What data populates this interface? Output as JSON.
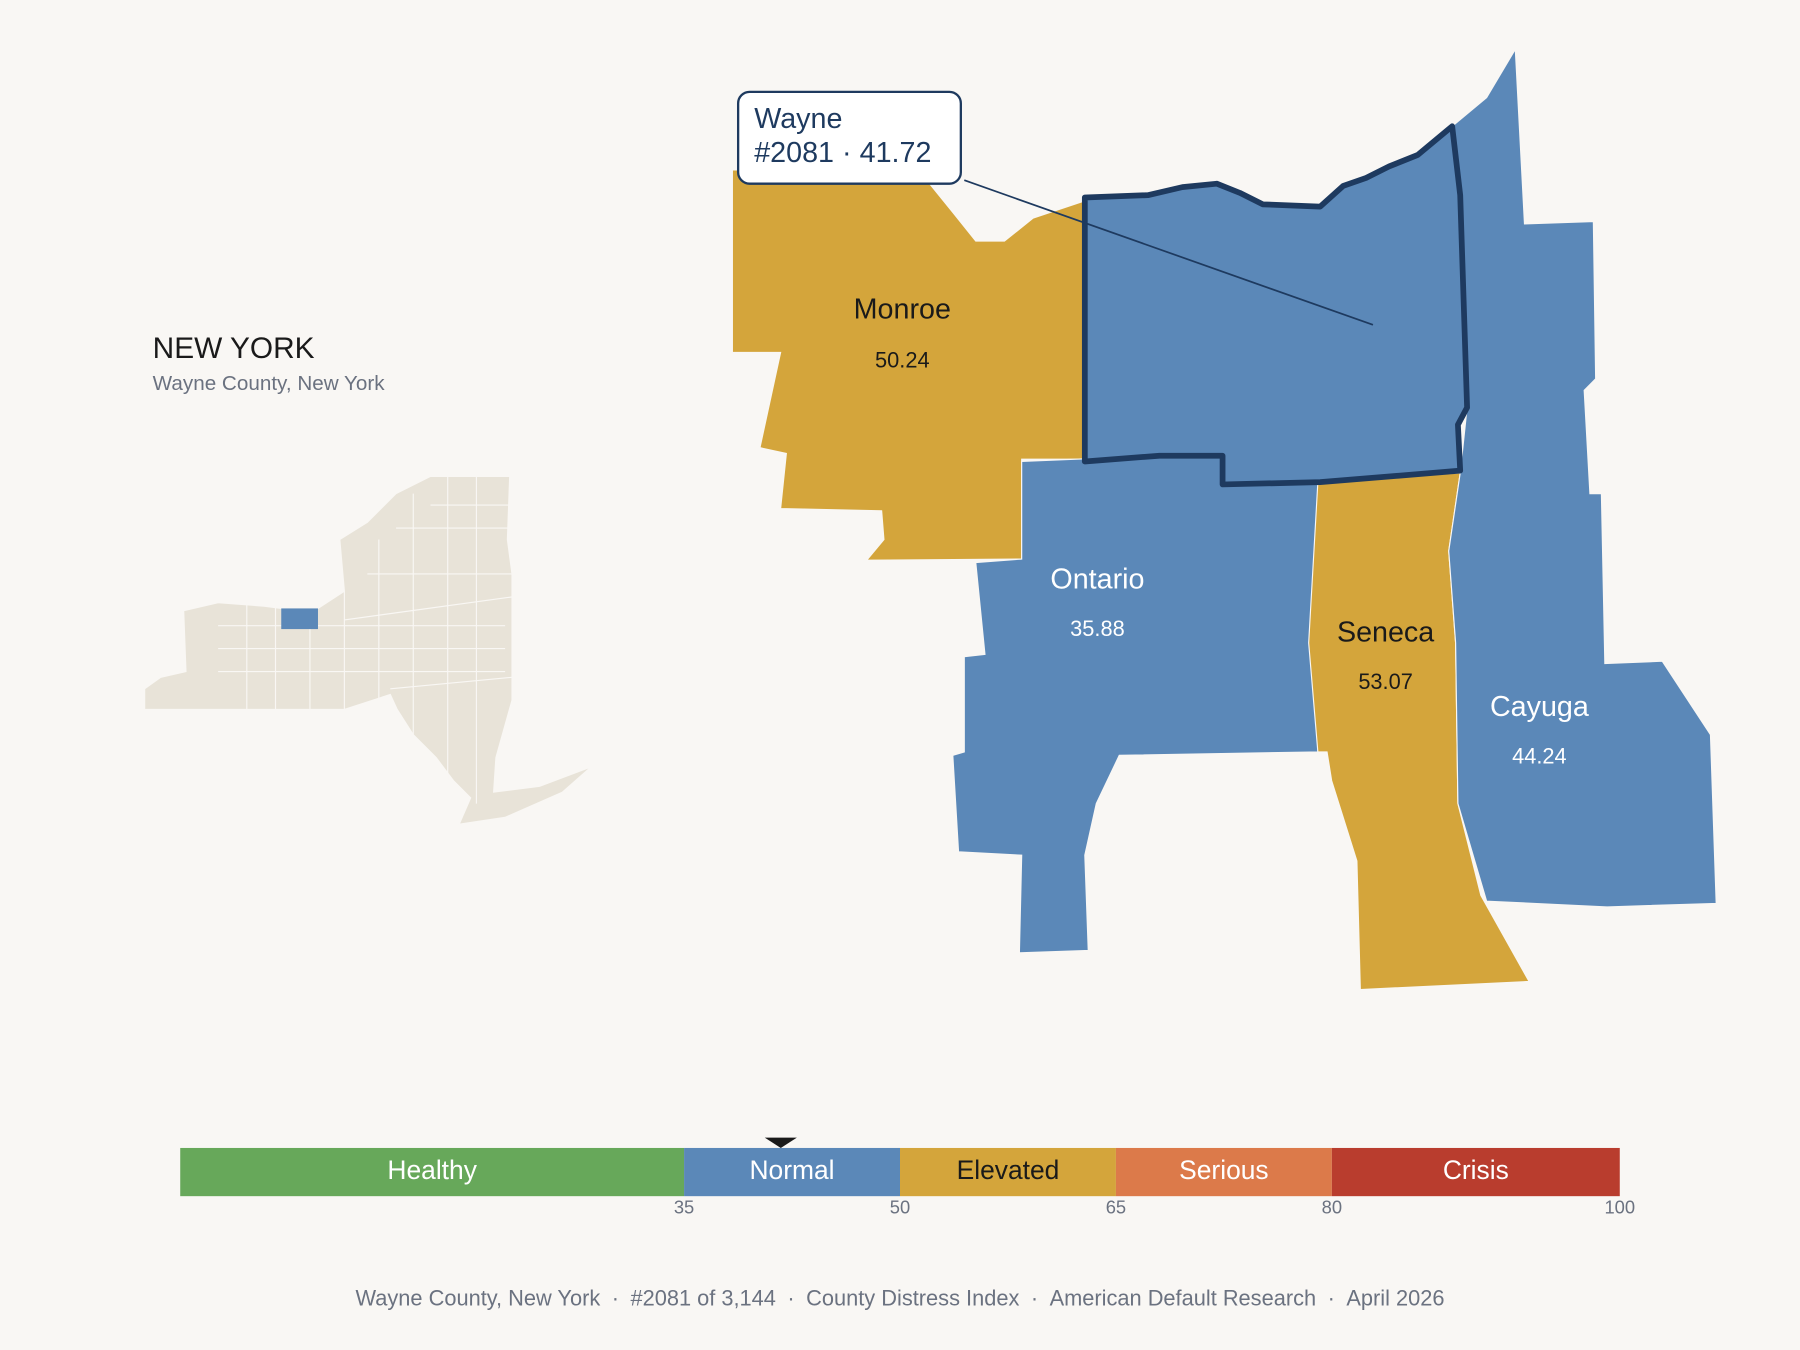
{
  "header": {
    "title": "NEW YORK",
    "subtitle": "Wayne County, New York"
  },
  "selected": {
    "name": "Wayne",
    "rank": "#2081",
    "separator": "·",
    "score": 41.72
  },
  "counties": [
    {
      "name": "Monroe",
      "score": 50.24
    },
    {
      "name": "Ontario",
      "score": 35.88
    },
    {
      "name": "Seneca",
      "score": 53.07
    },
    {
      "name": "Cayuga",
      "score": 44.24
    }
  ],
  "scale": {
    "range": [
      0,
      100
    ],
    "ticks": [
      35,
      50,
      65,
      80,
      100
    ],
    "bands": [
      {
        "label": "Healthy",
        "color": "#67a85a",
        "text_color": "#ffffff"
      },
      {
        "label": "Normal",
        "color": "#5b88b8",
        "text_color": "#ffffff"
      },
      {
        "label": "Elevated",
        "color": "#d4a53b",
        "text_color": "#1a1a1a"
      },
      {
        "label": "Serious",
        "color": "#dc7a4a",
        "text_color": "#ffffff"
      },
      {
        "label": "Crisis",
        "color": "#b93d2e",
        "text_color": "#ffffff"
      }
    ]
  },
  "footer": {
    "separator": "·",
    "items": [
      "Wayne County, New York",
      "#2081 of 3,144",
      "County Distress Index",
      "American Default Research",
      "April 2026"
    ]
  }
}
